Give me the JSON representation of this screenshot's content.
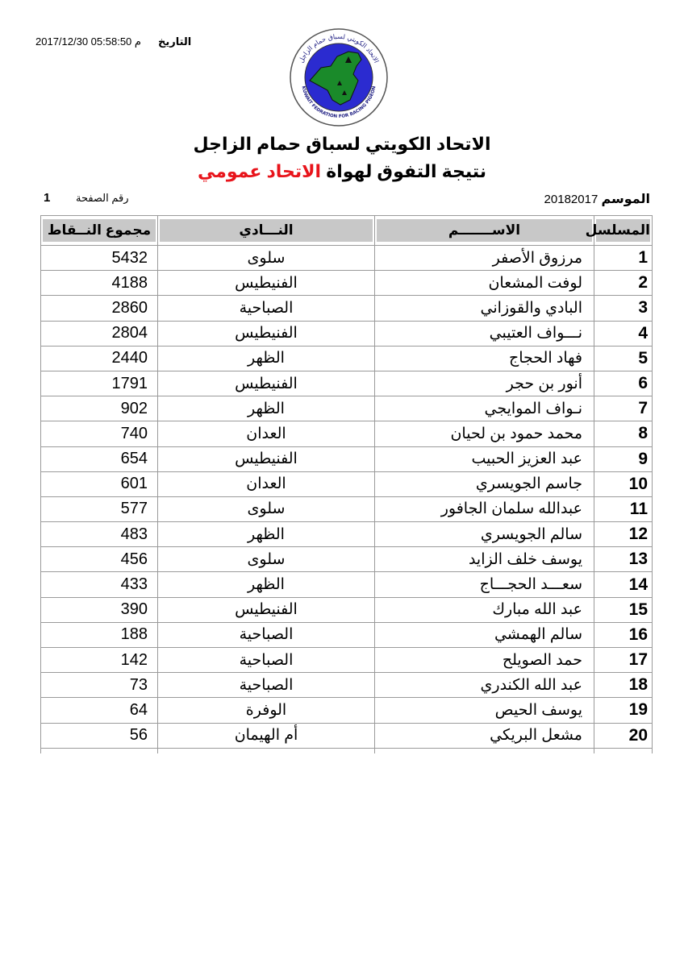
{
  "header": {
    "date_label": "التاريخ",
    "date_value": "2017/12/30 05:58:50 م",
    "logo": {
      "text_ar": "الاتحاد الكويتي لسباق حمام الزاجل",
      "text_en": "KUWAIT FEDRATION FOR RACING PIGEON"
    },
    "title": "الاتحاد الكويتي لسباق حمام الزاجل",
    "subtitle_prefix": "نتيجة التفوق لهواة",
    "subtitle_highlight": "الاتحاد عمومي",
    "season_label": "الموسم",
    "season_value": "20182017",
    "page_label": "رقم الصفحة",
    "page_number": "1"
  },
  "colors": {
    "highlight": "#e8141b",
    "header_fill": "#c8c8c8",
    "logo_blue": "#2b2bd0",
    "logo_green": "#1a8a2a"
  },
  "table": {
    "columns": [
      "المسلسل",
      "الاســـــــم",
      "النـــادي",
      "مجموع النــقاط"
    ],
    "rows": [
      {
        "serial": "1",
        "name": "مرزوق الأصفر",
        "club": "سلوى",
        "points": "5432"
      },
      {
        "serial": "2",
        "name": "لوفت المشعان",
        "club": "الفنيطيس",
        "points": "4188"
      },
      {
        "serial": "3",
        "name": "البادي والقوزاني",
        "club": "الصباحية",
        "points": "2860"
      },
      {
        "serial": "4",
        "name": "نـــواف العتيبي",
        "club": "الفنيطيس",
        "points": "2804"
      },
      {
        "serial": "5",
        "name": "فهاد الحجاج",
        "club": "الظهر",
        "points": "2440"
      },
      {
        "serial": "6",
        "name": "أنور بن حجر",
        "club": "الفنيطيس",
        "points": "1791"
      },
      {
        "serial": "7",
        "name": "نـواف  الموايجي",
        "club": "الظهر",
        "points": "902"
      },
      {
        "serial": "8",
        "name": "محمد حمود بن لحيان",
        "club": "العدان",
        "points": "740"
      },
      {
        "serial": "9",
        "name": "عبد العزيز الحبيب",
        "club": "الفنيطيس",
        "points": "654"
      },
      {
        "serial": "10",
        "name": "جاسم الجويسري",
        "club": "العدان",
        "points": "601"
      },
      {
        "serial": "11",
        "name": "عبدالله سلمان الجافور",
        "club": "سلوى",
        "points": "577"
      },
      {
        "serial": "12",
        "name": "سالم الجويسري",
        "club": "الظهر",
        "points": "483"
      },
      {
        "serial": "13",
        "name": "يوسف خلف الزايد",
        "club": "سلوى",
        "points": "456"
      },
      {
        "serial": "14",
        "name": "سعـــد الحجـــاج",
        "club": "الظهر",
        "points": "433"
      },
      {
        "serial": "15",
        "name": "عبد الله مبارك",
        "club": "الفنيطيس",
        "points": "390"
      },
      {
        "serial": "16",
        "name": "سالم الهمشي",
        "club": "الصباحية",
        "points": "188"
      },
      {
        "serial": "17",
        "name": "حمد الصويلح",
        "club": "الصباحية",
        "points": "142"
      },
      {
        "serial": "18",
        "name": "عبد الله الكندري",
        "club": "الصباحية",
        "points": "73"
      },
      {
        "serial": "19",
        "name": "يوسف الحيص",
        "club": "الوفرة",
        "points": "64"
      },
      {
        "serial": "20",
        "name": "مشعل البريكي",
        "club": "أم الهيمان",
        "points": "56"
      }
    ]
  }
}
